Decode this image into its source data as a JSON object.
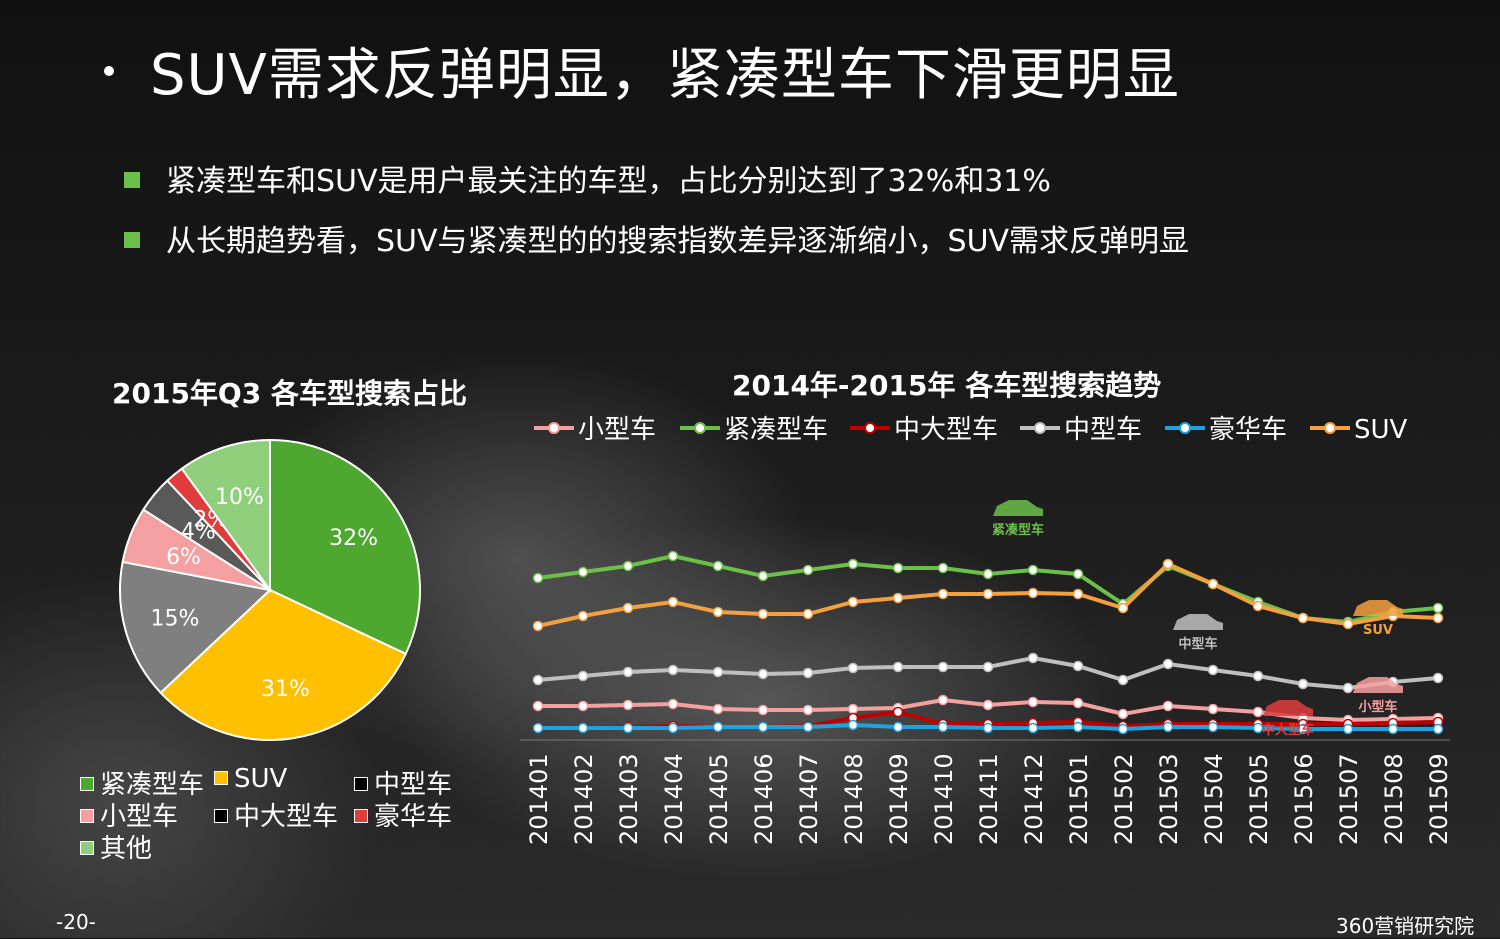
{
  "title": "SUV需求反弹明显，紧凑型车下滑更明显",
  "bullets": [
    "紧凑型车和SUV是用户最关注的车型，占比分别达到了32%和31%",
    "从长期趋势看，SUV与紧凑型的的搜索指数差异逐渐缩小，SUV需求反弹明显"
  ],
  "page_number": "-20-",
  "brand": "360营销研究院",
  "chart_data": [
    {
      "type": "pie",
      "title": "2015年Q3 各车型搜索占比",
      "slices": [
        {
          "label": "紧凑型车",
          "value": 32,
          "text": "32%",
          "color": "#4ea72e"
        },
        {
          "label": "SUV",
          "value": 31,
          "text": "31%",
          "color": "#ffc000"
        },
        {
          "label": "中型车",
          "value": 15,
          "text": "15%",
          "color": "#7f7f7f"
        },
        {
          "label": "小型车",
          "value": 6,
          "text": "6%",
          "color": "#f4a0a0"
        },
        {
          "label": "中大型车",
          "value": 4,
          "text": "4%",
          "color": "#595959"
        },
        {
          "label": "豪华车",
          "value": 2,
          "text": "2%",
          "color": "#e03c3c"
        },
        {
          "label": "其他",
          "value": 10,
          "text": "10%",
          "color": "#8fce7a"
        }
      ],
      "legend": [
        {
          "label": "紧凑型车",
          "color": "#4ea72e"
        },
        {
          "label": "SUV",
          "color": "#ffc000"
        },
        {
          "label": "中型车",
          "color": "#000000"
        },
        {
          "label": "小型车",
          "color": "#f4a0a0"
        },
        {
          "label": "中大型车",
          "color": "#000000"
        },
        {
          "label": "豪华车",
          "color": "#e03c3c"
        },
        {
          "label": "其他",
          "color": "#8fce7a"
        }
      ]
    },
    {
      "type": "line",
      "title": "2014年-2015年 各车型搜索趋势",
      "x": [
        "201401",
        "201402",
        "201403",
        "201404",
        "201405",
        "201406",
        "201407",
        "201408",
        "201409",
        "201410",
        "201411",
        "201412",
        "201501",
        "201502",
        "201503",
        "201504",
        "201505",
        "201506",
        "201507",
        "201508",
        "201509"
      ],
      "ylim": [
        0,
        100
      ],
      "series": [
        {
          "name": "小型车",
          "color": "#f4a0a0",
          "values": [
            12,
            12,
            12.5,
            13,
            10.5,
            10,
            10,
            10.5,
            11,
            15,
            12.5,
            14,
            13.5,
            8,
            12,
            10.5,
            9,
            6,
            5,
            5.5,
            6
          ]
        },
        {
          "name": "紧凑型车",
          "color": "#6cc04a",
          "values": [
            76,
            79,
            82,
            87,
            82,
            77,
            80,
            83,
            81,
            81,
            78,
            80,
            78,
            63,
            82,
            73,
            64,
            56,
            54,
            59,
            61
          ]
        },
        {
          "name": "中大型车",
          "color": "#c00000",
          "values": [
            1,
            1,
            1.5,
            2,
            1.5,
            1.5,
            2,
            6,
            9,
            3,
            3,
            3.5,
            4,
            2,
            3,
            3,
            3,
            3,
            3,
            3.5,
            4
          ]
        },
        {
          "name": "中型车",
          "color": "#bfbfbf",
          "values": [
            25,
            27,
            29,
            30,
            29,
            28,
            28.5,
            31,
            31.5,
            31.5,
            31.5,
            36,
            32,
            25,
            33,
            30,
            27,
            23,
            21,
            24,
            26
          ]
        },
        {
          "name": "豪华车",
          "color": "#1fa3e0",
          "values": [
            1,
            1,
            1,
            1,
            1.5,
            1.5,
            1.5,
            2.5,
            1.5,
            1.5,
            1,
            1,
            1.5,
            0.5,
            1.5,
            1.5,
            1,
            0.5,
            0.5,
            0.5,
            0.5
          ]
        },
        {
          "name": "SUV",
          "color": "#f5a040",
          "values": [
            52,
            57,
            61,
            64,
            59,
            58,
            58,
            64,
            66,
            68,
            68,
            68.5,
            68,
            61,
            83,
            73,
            62,
            56,
            53,
            57,
            56
          ]
        }
      ],
      "annotations": [
        "紧凑型车",
        "中型车",
        "SUV",
        "中大型车",
        "小型车"
      ]
    }
  ]
}
